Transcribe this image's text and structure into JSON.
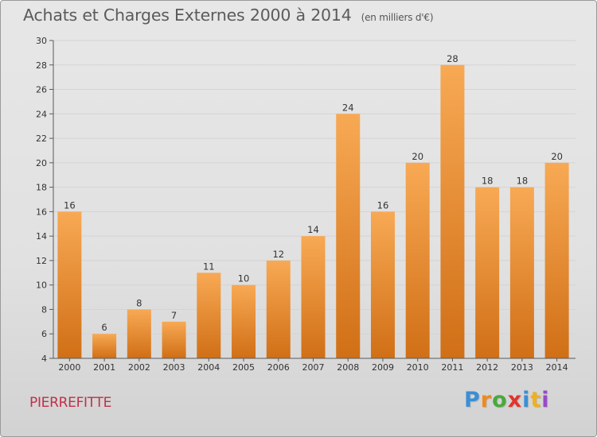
{
  "title": "Achats et Charges Externes 2000 à 2014",
  "subtitle": "(en milliers d'€)",
  "commune": "PIERREFITTE",
  "logo": {
    "letters": [
      "P",
      "r",
      "o",
      "x",
      "i",
      "t",
      "i"
    ]
  },
  "colors": {
    "bar_top": "#f8a954",
    "bar_bottom": "#d06f16",
    "axis": "#5a5a5a",
    "grid": "#d4d4d4",
    "commune": "#c0304a"
  },
  "chart_data": {
    "type": "bar",
    "title": "Achats et Charges Externes 2000 à 2014",
    "subtitle": "(en milliers d'€)",
    "categories": [
      "2000",
      "2001",
      "2002",
      "2003",
      "2004",
      "2005",
      "2006",
      "2007",
      "2008",
      "2009",
      "2010",
      "2011",
      "2012",
      "2013",
      "2014"
    ],
    "values": [
      16,
      6,
      8,
      7,
      11,
      10,
      12,
      14,
      24,
      16,
      20,
      28,
      18,
      18,
      20
    ],
    "ylim": [
      4,
      30
    ],
    "yticks": [
      4,
      6,
      8,
      10,
      12,
      14,
      16,
      18,
      20,
      22,
      24,
      26,
      28,
      30
    ],
    "grid": true,
    "legend": "none"
  }
}
